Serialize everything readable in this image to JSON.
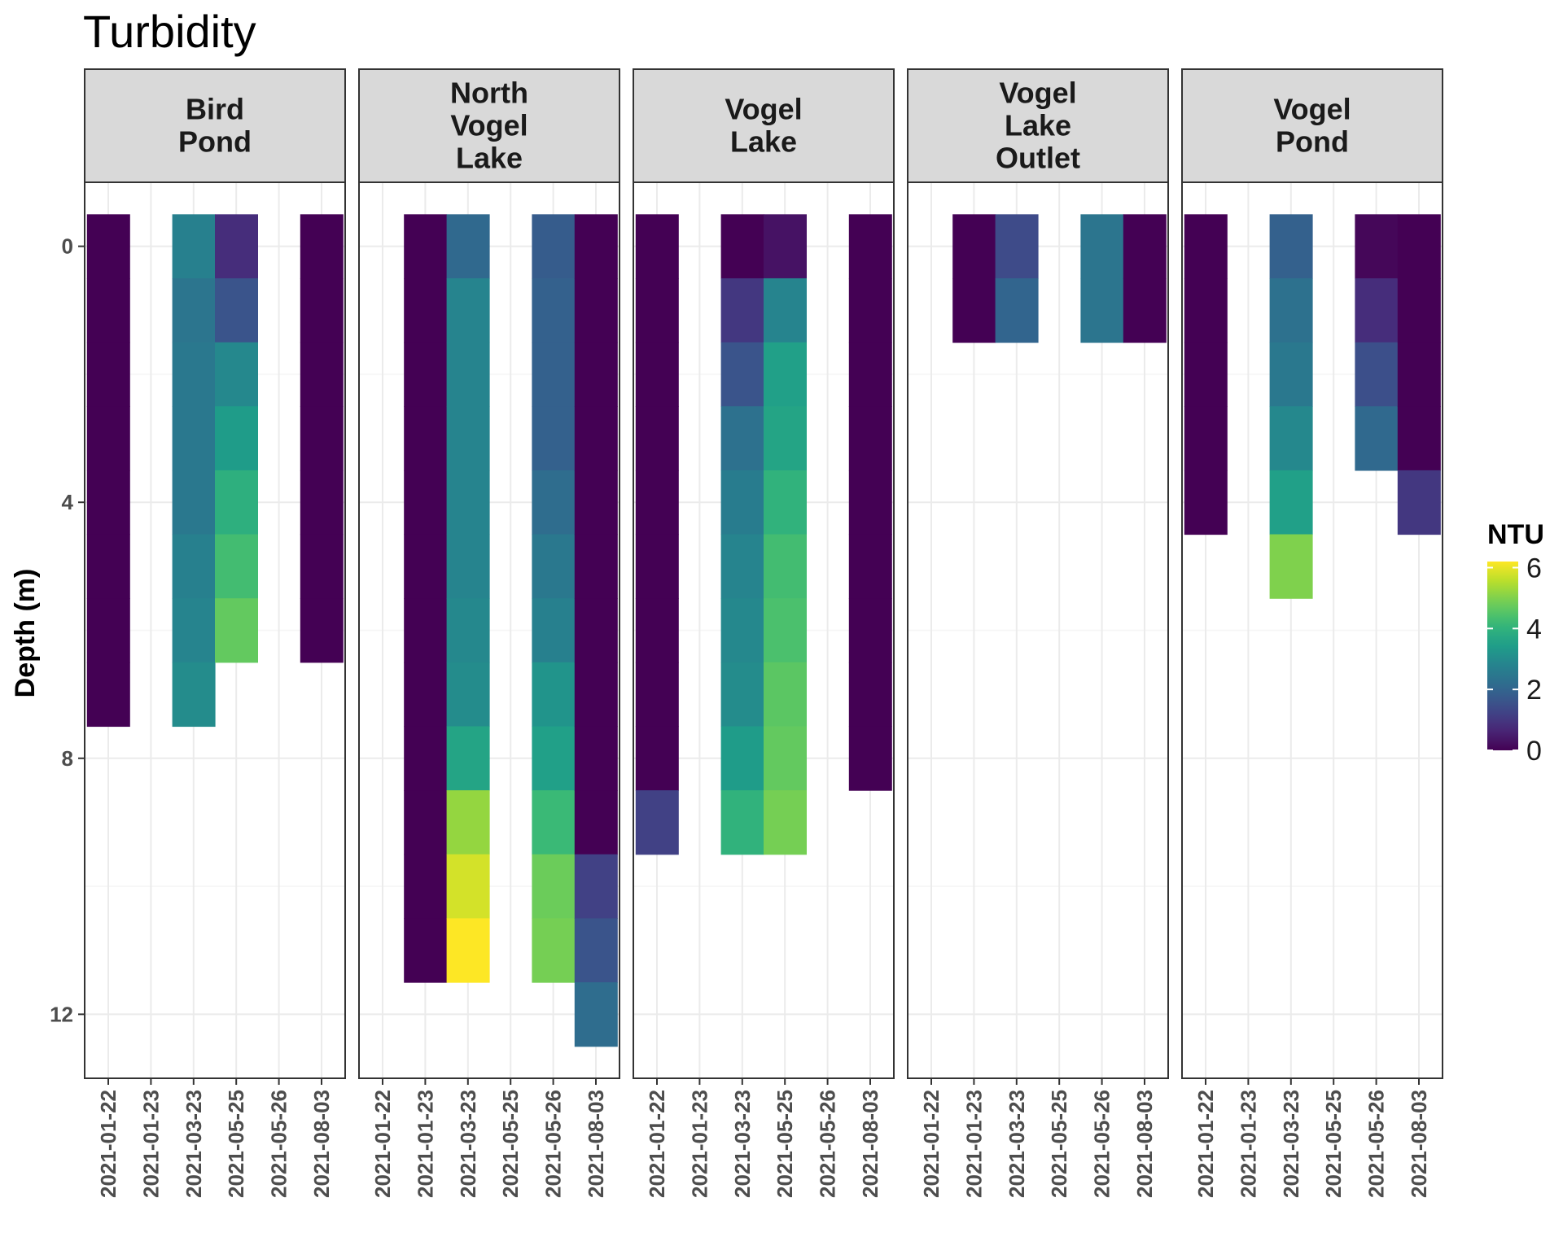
{
  "chart_data": {
    "type": "heatmap",
    "title": "Turbidity",
    "ylabel": "Depth (m)",
    "xlabel": "",
    "ylim": [
      13,
      -1
    ],
    "y_ticks": [
      0,
      4,
      8,
      12
    ],
    "grid": true,
    "x_categories": [
      "2021-01-22",
      "2021-01-23",
      "2021-03-23",
      "2021-05-25",
      "2021-05-26",
      "2021-08-03"
    ],
    "legend": {
      "title": "NTU",
      "placement": "right",
      "range": [
        0,
        6.2
      ],
      "ticks": [
        0,
        2,
        4,
        6
      ],
      "colormap": "viridis"
    },
    "panels": [
      {
        "name": "Bird Pond",
        "strip_lines": [
          "Bird",
          "Pond"
        ],
        "columns": [
          {
            "x": "2021-01-22",
            "depths": [
              0,
              1,
              2,
              3,
              4,
              5,
              6,
              7
            ],
            "values": [
              0.0,
              0.0,
              0.0,
              0.0,
              0.0,
              0.0,
              0.0,
              0.0
            ]
          },
          {
            "x": "2021-03-23",
            "depths": [
              0,
              1,
              2,
              3,
              4,
              5,
              6,
              7
            ],
            "values": [
              2.7,
              2.4,
              2.5,
              2.5,
              2.5,
              2.7,
              2.8,
              3.0
            ]
          },
          {
            "x": "2021-05-25",
            "depths": [
              0,
              1,
              2,
              3,
              4,
              5,
              6
            ],
            "values": [
              0.8,
              1.6,
              2.9,
              3.4,
              3.9,
              4.3,
              4.7
            ]
          },
          {
            "x": "2021-08-03",
            "depths": [
              0,
              1,
              2,
              3,
              4,
              5,
              6
            ],
            "values": [
              0.0,
              0.0,
              0.0,
              0.0,
              0.0,
              0.0,
              0.0
            ]
          }
        ]
      },
      {
        "name": "North Vogel Lake",
        "strip_lines": [
          "North",
          "Vogel",
          "Lake"
        ],
        "columns": [
          {
            "x": "2021-01-23",
            "depths": [
              0,
              1,
              2,
              3,
              4,
              5,
              6,
              7,
              8,
              9,
              10,
              11
            ],
            "values": [
              0,
              0,
              0,
              0,
              0,
              0,
              0,
              0,
              0,
              0,
              0,
              0
            ]
          },
          {
            "x": "2021-03-23",
            "depths": [
              0,
              1,
              2,
              3,
              4,
              5,
              6,
              7,
              8,
              9,
              10,
              11
            ],
            "values": [
              2.1,
              2.8,
              2.8,
              2.8,
              2.8,
              2.8,
              2.9,
              3.0,
              3.6,
              5.2,
              5.8,
              6.2
            ]
          },
          {
            "x": "2021-05-26",
            "depths": [
              0,
              1,
              2,
              3,
              4,
              5,
              6,
              7,
              8,
              9,
              10,
              11
            ],
            "values": [
              1.8,
              1.9,
              1.9,
              1.9,
              2.2,
              2.5,
              2.7,
              3.2,
              3.5,
              4.2,
              4.8,
              4.9
            ]
          },
          {
            "x": "2021-08-03",
            "depths": [
              0,
              1,
              2,
              3,
              4,
              5,
              6,
              7,
              8,
              9,
              10,
              11,
              12
            ],
            "values": [
              0,
              0,
              0,
              0,
              0,
              0,
              0,
              0,
              0,
              0,
              1.2,
              1.6,
              2.2
            ]
          }
        ]
      },
      {
        "name": "Vogel Lake",
        "strip_lines": [
          "Vogel",
          "Lake"
        ],
        "columns": [
          {
            "x": "2021-01-22",
            "depths": [
              0,
              1,
              2,
              3,
              4,
              5,
              6,
              7,
              8,
              9
            ],
            "values": [
              0,
              0,
              0,
              0,
              0,
              0,
              0,
              0,
              0,
              1.2
            ]
          },
          {
            "x": "2021-03-23",
            "depths": [
              0,
              1,
              2,
              3,
              4,
              5,
              6,
              7,
              8,
              9
            ],
            "values": [
              0.0,
              1.0,
              1.6,
              2.3,
              2.6,
              2.8,
              2.9,
              3.0,
              3.4,
              4.0
            ]
          },
          {
            "x": "2021-05-25",
            "depths": [
              0,
              1,
              2,
              3,
              4,
              5,
              6,
              7,
              8,
              9
            ],
            "values": [
              0.3,
              2.8,
              3.5,
              3.6,
              4.0,
              4.3,
              4.4,
              4.6,
              4.7,
              4.9
            ]
          },
          {
            "x": "2021-08-03",
            "depths": [
              0,
              1,
              2,
              3,
              4,
              5,
              6,
              7,
              8
            ],
            "values": [
              0,
              0,
              0,
              0,
              0,
              0,
              0,
              0,
              0
            ]
          }
        ]
      },
      {
        "name": "Vogel Lake Outlet",
        "strip_lines": [
          "Vogel",
          "Lake",
          "Outlet"
        ],
        "columns": [
          {
            "x": "2021-01-23",
            "depths": [
              0,
              1
            ],
            "values": [
              0.0,
              0.0
            ]
          },
          {
            "x": "2021-03-23",
            "depths": [
              0,
              1
            ],
            "values": [
              1.4,
              2.0
            ]
          },
          {
            "x": "2021-05-26",
            "depths": [
              0,
              1
            ],
            "values": [
              2.4,
              2.4
            ]
          },
          {
            "x": "2021-08-03",
            "depths": [
              0,
              1
            ],
            "values": [
              0.0,
              0.0
            ]
          }
        ]
      },
      {
        "name": "Vogel Pond",
        "strip_lines": [
          "Vogel",
          "Pond"
        ],
        "columns": [
          {
            "x": "2021-01-22",
            "depths": [
              0,
              1,
              2,
              3,
              4
            ],
            "values": [
              0,
              0,
              0,
              0,
              0
            ]
          },
          {
            "x": "2021-03-23",
            "depths": [
              0,
              1,
              2,
              3,
              4,
              5
            ],
            "values": [
              1.9,
              2.3,
              2.5,
              2.9,
              3.5,
              5.0
            ]
          },
          {
            "x": "2021-05-26",
            "depths": [
              0,
              1,
              2,
              3
            ],
            "values": [
              0.1,
              0.8,
              1.5,
              2.1
            ]
          },
          {
            "x": "2021-08-03",
            "depths": [
              0,
              1,
              2,
              3,
              4
            ],
            "values": [
              0.0,
              0.0,
              0.0,
              0.0,
              1.0
            ]
          }
        ]
      }
    ]
  },
  "colors": {
    "strip_fill": "#d9d9d9",
    "grid_major": "#ebebeb",
    "grid_minor": "#f5f5f5",
    "border": "#333333"
  }
}
